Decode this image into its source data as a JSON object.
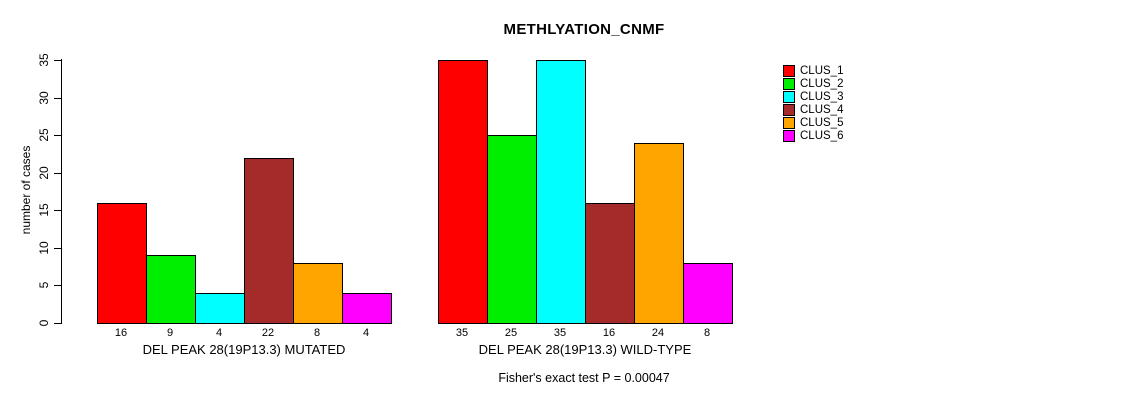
{
  "title": "METHLYATION_CNMF",
  "subtitle": "Fisher's exact test P = 0.00047",
  "chart_data": {
    "type": "bar",
    "title": "METHLYATION_CNMF",
    "xlabel": "",
    "ylabel": "number of cases",
    "ylim": [
      0,
      35
    ],
    "yticks": [
      0,
      5,
      10,
      15,
      20,
      25,
      30,
      35
    ],
    "grid": false,
    "legend_position": "top-right",
    "annotation": "Fisher's exact test P = 0.00047",
    "categories": [
      "CLUS_1",
      "CLUS_2",
      "CLUS_3",
      "CLUS_4",
      "CLUS_5",
      "CLUS_6"
    ],
    "series_colors": [
      "#FF0000",
      "#00EE00",
      "#00FFFF",
      "#A52A2A",
      "#FFA500",
      "#FF00FF"
    ],
    "groups": [
      {
        "label": "DEL PEAK 28(19P13.3) MUTATED",
        "values": [
          16,
          9,
          4,
          22,
          8,
          4
        ]
      },
      {
        "label": "DEL PEAK 28(19P13.3) WILD-TYPE",
        "values": [
          35,
          25,
          35,
          16,
          24,
          8
        ]
      }
    ],
    "legend": [
      {
        "label": "CLUS_1",
        "color": "#FF0000"
      },
      {
        "label": "CLUS_2",
        "color": "#00EE00"
      },
      {
        "label": "CLUS_3",
        "color": "#00FFFF"
      },
      {
        "label": "CLUS_4",
        "color": "#A52A2A"
      },
      {
        "label": "CLUS_5",
        "color": "#FFA500"
      },
      {
        "label": "CLUS_6",
        "color": "#FF00FF"
      }
    ]
  }
}
